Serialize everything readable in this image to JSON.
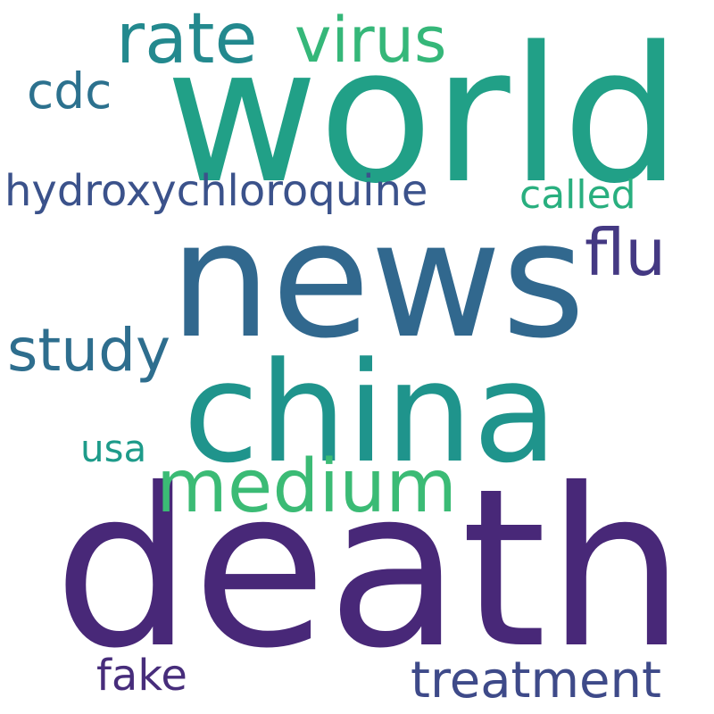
{
  "word_cloud": {
    "words": [
      {
        "key": "world",
        "text": "world",
        "color": "#21a087"
      },
      {
        "key": "news",
        "text": "news",
        "color": "#31688e"
      },
      {
        "key": "death",
        "text": "death",
        "color": "#482878"
      },
      {
        "key": "china",
        "text": "china",
        "color": "#1f948c"
      },
      {
        "key": "medium",
        "text": "medium",
        "color": "#3bbb75"
      },
      {
        "key": "rate",
        "text": "rate",
        "color": "#23898e"
      },
      {
        "key": "virus",
        "text": "virus",
        "color": "#35b779"
      },
      {
        "key": "cdc",
        "text": "cdc",
        "color": "#2c718e"
      },
      {
        "key": "hydroxychloroquine",
        "text": "hydroxychloroquine",
        "color": "#3b528b"
      },
      {
        "key": "called",
        "text": "called",
        "color": "#29af7f"
      },
      {
        "key": "flu",
        "text": "flu",
        "color": "#443983"
      },
      {
        "key": "study",
        "text": "study",
        "color": "#2e6e8e"
      },
      {
        "key": "usa",
        "text": "usa",
        "color": "#1e9b8a"
      },
      {
        "key": "fake",
        "text": "fake",
        "color": "#472d7b"
      },
      {
        "key": "treatment",
        "text": "treatment",
        "color": "#3e4a89"
      }
    ]
  }
}
